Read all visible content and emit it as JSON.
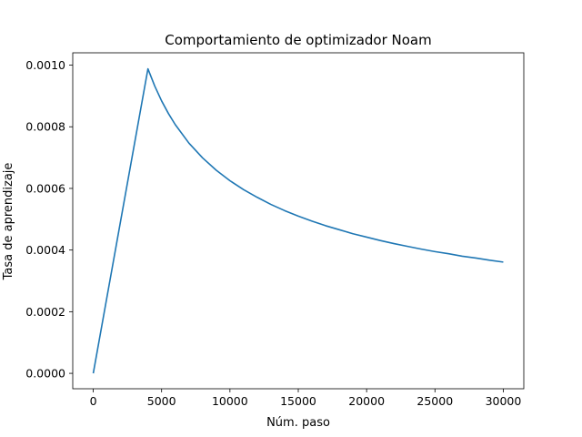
{
  "chart_data": {
    "type": "line",
    "title": "Comportamiento de optimizador Noam",
    "xlabel": "Núm. paso",
    "ylabel": "Tasa de aprendizaje",
    "xlim": [
      -1500,
      31500
    ],
    "ylim": [
      -5e-05,
      0.00104
    ],
    "grid": false,
    "legend": "none",
    "x_ticks": [
      0,
      5000,
      10000,
      15000,
      20000,
      25000,
      30000
    ],
    "x_tick_labels": [
      "0",
      "5000",
      "10000",
      "15000",
      "20000",
      "25000",
      "30000"
    ],
    "y_ticks": [
      0,
      0.0002,
      0.0004,
      0.0006,
      0.0008,
      0.001
    ],
    "y_tick_labels": [
      "0.0000",
      "0.0002",
      "0.0004",
      "0.0006",
      "0.0008",
      "0.0010"
    ],
    "series": [
      {
        "color": "#1f77b4",
        "x": [
          1,
          4000,
          4500,
          5000,
          5500,
          6000,
          7000,
          8000,
          9000,
          10000,
          11000,
          12000,
          13000,
          14000,
          15000,
          16000,
          17000,
          18000,
          19000,
          20000,
          21000,
          22000,
          23000,
          24000,
          25000,
          26000,
          27000,
          28000,
          29000,
          30000
        ],
        "y": [
          0,
          0.000988,
          0.000932,
          0.000884,
          0.000843,
          0.000807,
          0.000747,
          0.000699,
          0.000659,
          0.000625,
          0.000596,
          0.000571,
          0.000548,
          0.000528,
          0.00051,
          0.000494,
          0.000479,
          0.000466,
          0.000453,
          0.000442,
          0.000431,
          0.000421,
          0.000412,
          0.000403,
          0.000395,
          0.000388,
          0.00038,
          0.000374,
          0.000367,
          0.000361
        ]
      }
    ]
  }
}
